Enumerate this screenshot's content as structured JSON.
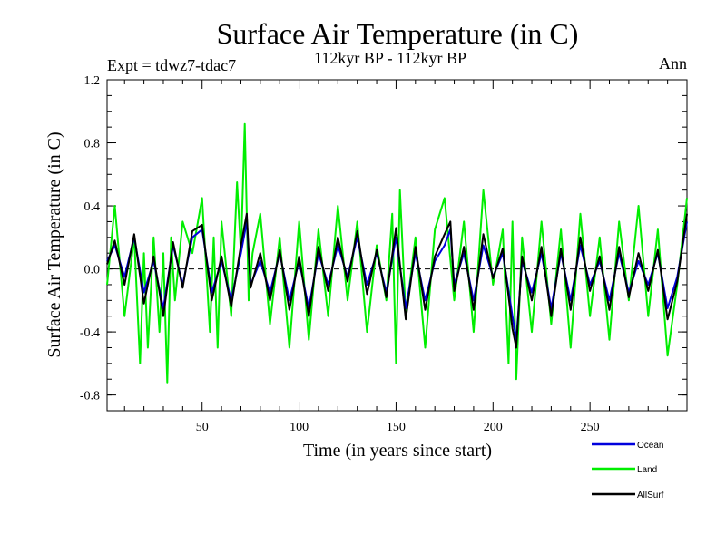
{
  "chart_data": {
    "type": "line",
    "title": "Surface Air Temperature (in C)",
    "subtitle": "112kyr BP - 112kyr BP",
    "experiment": "Expt = tdwz7-tdac7",
    "season": "Ann",
    "xlabel": "Time (in years since start)",
    "ylabel": "Surface Air Temperature (in C)",
    "xlim": [
      1,
      300
    ],
    "ylim": [
      -0.9,
      1.2
    ],
    "x_ticks": [
      50,
      100,
      150,
      200,
      250
    ],
    "y_ticks": [
      -0.8,
      -0.4,
      0.0,
      0.4,
      0.8,
      1.2
    ],
    "y_tick_labels": [
      "-0.8",
      "-0.4",
      "0.0",
      "0.4",
      "0.8",
      "1.2"
    ],
    "zero_line": true,
    "legend_position": "bottom-right",
    "series": [
      {
        "name": "Land",
        "color": "#00ee00",
        "x": [
          1,
          5,
          10,
          15,
          18,
          20,
          22,
          25,
          28,
          30,
          32,
          34,
          36,
          40,
          45,
          50,
          54,
          56,
          58,
          60,
          65,
          68,
          70,
          72,
          74,
          76,
          80,
          85,
          90,
          95,
          100,
          105,
          110,
          115,
          120,
          125,
          130,
          135,
          140,
          145,
          148,
          150,
          152,
          155,
          160,
          165,
          170,
          175,
          180,
          185,
          190,
          195,
          200,
          205,
          208,
          210,
          212,
          215,
          220,
          225,
          230,
          235,
          240,
          245,
          250,
          255,
          260,
          265,
          270,
          275,
          280,
          285,
          290,
          295,
          300
        ],
        "values": [
          -0.1,
          0.4,
          -0.3,
          0.2,
          -0.6,
          0.1,
          -0.5,
          0.2,
          -0.4,
          0.1,
          -0.72,
          0.2,
          -0.2,
          0.3,
          0.1,
          0.45,
          -0.4,
          0.2,
          -0.5,
          0.3,
          -0.3,
          0.55,
          0.1,
          0.92,
          -0.2,
          0.1,
          0.35,
          -0.35,
          0.2,
          -0.5,
          0.3,
          -0.45,
          0.25,
          -0.3,
          0.4,
          -0.2,
          0.3,
          -0.4,
          0.15,
          -0.2,
          0.35,
          -0.6,
          0.5,
          -0.3,
          0.2,
          -0.5,
          0.25,
          0.45,
          -0.2,
          0.3,
          -0.4,
          0.5,
          -0.1,
          0.25,
          -0.6,
          0.3,
          -0.7,
          0.2,
          -0.4,
          0.3,
          -0.35,
          0.25,
          -0.5,
          0.35,
          -0.3,
          0.2,
          -0.45,
          0.3,
          -0.2,
          0.4,
          -0.3,
          0.25,
          -0.55,
          -0.1,
          0.45
        ]
      },
      {
        "name": "Ocean",
        "color": "#0000dd",
        "x": [
          1,
          5,
          10,
          15,
          20,
          25,
          30,
          35,
          40,
          45,
          50,
          55,
          60,
          65,
          70,
          73,
          75,
          80,
          85,
          90,
          95,
          100,
          105,
          110,
          115,
          120,
          125,
          130,
          135,
          140,
          145,
          150,
          155,
          160,
          165,
          170,
          175,
          178,
          180,
          185,
          190,
          195,
          200,
          205,
          210,
          212,
          215,
          220,
          225,
          230,
          235,
          240,
          245,
          250,
          255,
          260,
          265,
          270,
          275,
          280,
          285,
          290,
          295,
          300
        ],
        "values": [
          0.05,
          0.15,
          -0.05,
          0.2,
          -0.15,
          0.05,
          -0.25,
          0.15,
          -0.1,
          0.2,
          0.25,
          -0.15,
          0.05,
          -0.2,
          0.1,
          0.3,
          -0.1,
          0.05,
          -0.15,
          0.1,
          -0.2,
          0.05,
          -0.25,
          0.1,
          -0.1,
          0.15,
          -0.05,
          0.2,
          -0.1,
          0.1,
          -0.15,
          0.2,
          -0.25,
          0.1,
          -0.2,
          0.05,
          0.15,
          0.25,
          -0.1,
          0.1,
          -0.2,
          0.15,
          -0.05,
          0.1,
          -0.3,
          -0.45,
          0.05,
          -0.15,
          0.1,
          -0.25,
          0.1,
          -0.2,
          0.15,
          -0.1,
          0.05,
          -0.2,
          0.1,
          -0.15,
          0.05,
          -0.1,
          0.1,
          -0.25,
          -0.05,
          0.3
        ]
      },
      {
        "name": "AllSurf",
        "color": "#000000",
        "x": [
          1,
          5,
          10,
          15,
          20,
          25,
          30,
          35,
          40,
          45,
          50,
          55,
          60,
          65,
          70,
          73,
          75,
          80,
          85,
          90,
          95,
          100,
          105,
          110,
          115,
          120,
          125,
          130,
          135,
          140,
          145,
          150,
          155,
          160,
          165,
          170,
          175,
          178,
          180,
          185,
          190,
          195,
          200,
          205,
          210,
          212,
          215,
          220,
          225,
          230,
          235,
          240,
          245,
          250,
          255,
          260,
          265,
          270,
          275,
          280,
          285,
          290,
          295,
          300
        ],
        "values": [
          0.03,
          0.18,
          -0.1,
          0.22,
          -0.22,
          0.08,
          -0.3,
          0.17,
          -0.12,
          0.24,
          0.28,
          -0.2,
          0.08,
          -0.24,
          0.15,
          0.35,
          -0.12,
          0.1,
          -0.2,
          0.12,
          -0.26,
          0.08,
          -0.3,
          0.14,
          -0.14,
          0.2,
          -0.08,
          0.24,
          -0.16,
          0.12,
          -0.18,
          0.26,
          -0.32,
          0.14,
          -0.26,
          0.08,
          0.22,
          0.3,
          -0.14,
          0.14,
          -0.26,
          0.22,
          -0.06,
          0.13,
          -0.38,
          -0.5,
          0.08,
          -0.2,
          0.14,
          -0.3,
          0.13,
          -0.26,
          0.2,
          -0.14,
          0.08,
          -0.26,
          0.14,
          -0.18,
          0.1,
          -0.14,
          0.12,
          -0.32,
          -0.08,
          0.35
        ]
      }
    ]
  },
  "legend": {
    "ocean_label": "Ocean",
    "land_label": "Land",
    "allsurf_label": "AllSurf"
  }
}
